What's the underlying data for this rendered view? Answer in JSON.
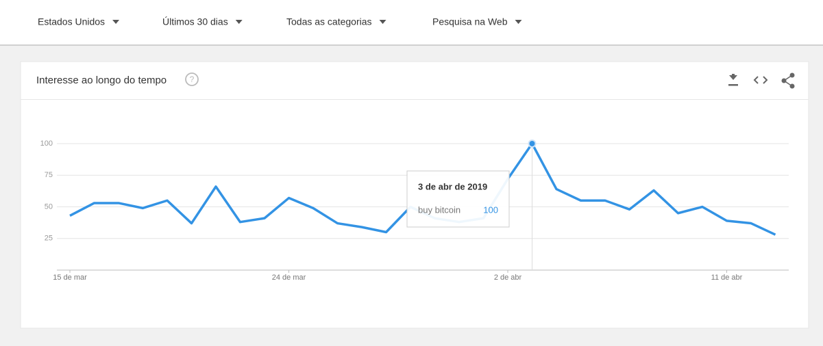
{
  "filters": [
    "Estados Unidos",
    "Últimos 30 dias",
    "Todas as categorias",
    "Pesquisa na Web"
  ],
  "card": {
    "title": "Interesse ao longo do tempo"
  },
  "chart_data": {
    "type": "line",
    "categories": [
      "15 de mar",
      null,
      null,
      null,
      null,
      null,
      null,
      null,
      null,
      "24 de mar",
      null,
      null,
      null,
      null,
      null,
      null,
      null,
      null,
      "2 de abr",
      null,
      null,
      null,
      null,
      null,
      null,
      null,
      null,
      "11 de abr",
      null,
      null
    ],
    "series": [
      {
        "name": "buy bitcoin",
        "color": "#3393e4",
        "values": [
          43,
          53,
          53,
          49,
          55,
          37,
          66,
          38,
          41,
          57,
          49,
          37,
          34,
          30,
          50,
          41,
          38,
          41,
          72,
          100,
          64,
          55,
          55,
          48,
          63,
          45,
          50,
          39,
          37,
          28
        ]
      }
    ],
    "ylim": [
      0,
      100
    ],
    "yticks": [
      25,
      50,
      75,
      100
    ],
    "grid": true,
    "tooltip": {
      "date": "3 de abr de 2019",
      "index": 19
    }
  }
}
